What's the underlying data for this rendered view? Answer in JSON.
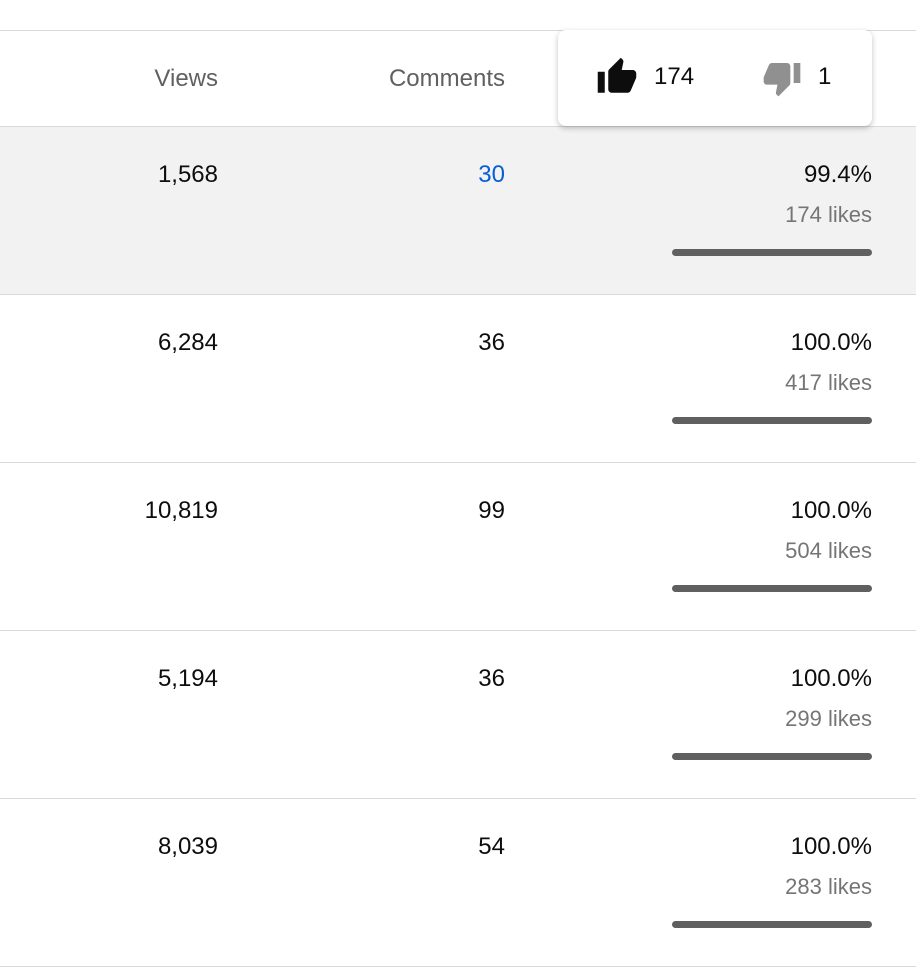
{
  "header": {
    "columns": [
      "Views",
      "Comments"
    ],
    "tooltip": {
      "likes": "174",
      "dislikes": "1"
    }
  },
  "rows": [
    {
      "views": "1,568",
      "comments": "30",
      "ratio": "99.4%",
      "likes": "174 likes"
    },
    {
      "views": "6,284",
      "comments": "36",
      "ratio": "100.0%",
      "likes": "417 likes"
    },
    {
      "views": "10,819",
      "comments": "99",
      "ratio": "100.0%",
      "likes": "504 likes"
    },
    {
      "views": "5,194",
      "comments": "36",
      "ratio": "100.0%",
      "likes": "299 likes"
    },
    {
      "views": "8,039",
      "comments": "54",
      "ratio": "100.0%",
      "likes": "283 likes"
    }
  ]
}
